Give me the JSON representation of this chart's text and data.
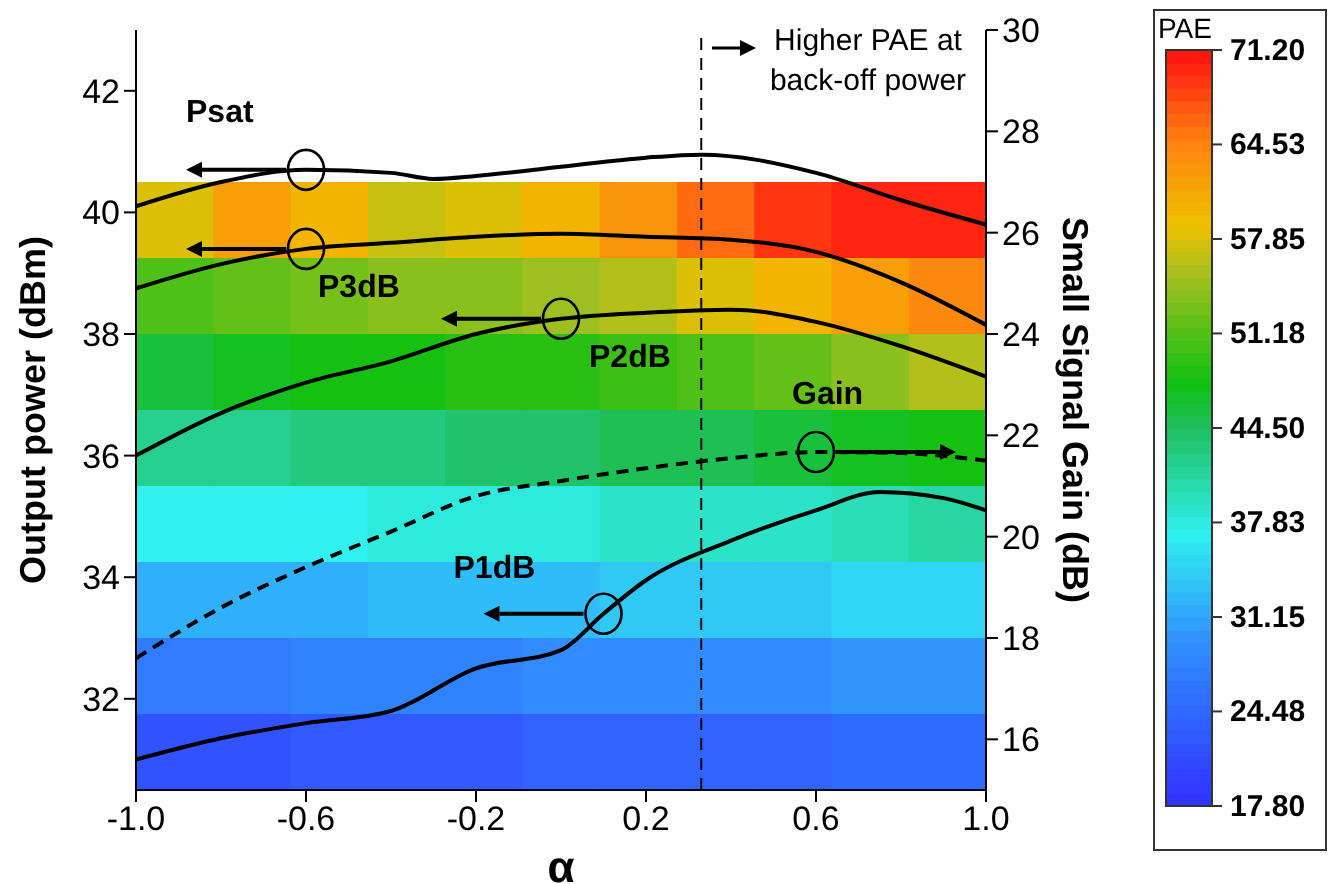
{
  "chart_data": [
    {
      "type": "heatmap",
      "clabel": "PAE",
      "tick_labels": false,
      "categories": [
        null,
        null,
        null,
        null,
        null,
        null,
        null,
        null,
        null,
        null,
        null
      ],
      "y_categories": [
        null,
        null,
        null,
        null,
        null,
        null,
        null,
        null
      ],
      "cells": [
        [
          58,
          62,
          60,
          57,
          58,
          60,
          63,
          66,
          69,
          70,
          70
        ],
        [
          51,
          52,
          53,
          54,
          54,
          55,
          56,
          58,
          60,
          62,
          64
        ],
        [
          46,
          47,
          48,
          48,
          49,
          49,
          50,
          51,
          52,
          54,
          56
        ],
        [
          42,
          42,
          43,
          43,
          44,
          44,
          45,
          45,
          46,
          47,
          48
        ],
        [
          37,
          37,
          37,
          38,
          38,
          38,
          39,
          39,
          39,
          40,
          41
        ],
        [
          32,
          32,
          32,
          33,
          33,
          33,
          34,
          34,
          34,
          35,
          35
        ],
        [
          27,
          27,
          28,
          28,
          28,
          29,
          29,
          29,
          29,
          30,
          30
        ],
        [
          22,
          22,
          23,
          23,
          23,
          24,
          24,
          24,
          24,
          25,
          25
        ]
      ],
      "clim": [
        17.8,
        71.2
      ],
      "cticks": [
        {
          "value": 17.8,
          "label": "17.80"
        },
        {
          "value": 24.48,
          "label": "24.48"
        },
        {
          "value": 31.15,
          "label": "31.15"
        },
        {
          "value": 37.83,
          "label": "37.83"
        },
        {
          "value": 44.5,
          "label": "44.50"
        },
        {
          "value": 51.18,
          "label": "51.18"
        },
        {
          "value": 57.85,
          "label": "57.85"
        },
        {
          "value": 64.53,
          "label": "64.53"
        },
        {
          "value": 71.2,
          "label": "71.20"
        }
      ]
    },
    {
      "type": "line",
      "xlabel": "α",
      "ylabel": "Output power (dBm)",
      "y2label": "Small Signal Gain (dB)",
      "xlim": [
        -1,
        1
      ],
      "xticks": [
        {
          "value": -1,
          "label": "-1.0"
        },
        -0.6,
        -0.2,
        0.2,
        0.6,
        {
          "value": 1,
          "label": "1.0"
        }
      ],
      "ylim": [
        30.5,
        43
      ],
      "yticks": [
        32,
        34,
        36,
        38,
        40,
        42
      ],
      "y2lim": [
        15,
        30
      ],
      "y2ticks": [
        16,
        18,
        20,
        22,
        24,
        26,
        28,
        30
      ],
      "grid": false,
      "marker": "none",
      "series": [
        {
          "name": "Psat",
          "color": "#000000",
          "x": [
            -1,
            -0.8,
            -0.6,
            -0.4,
            -0.3,
            -0.2,
            0,
            0.2,
            0.33,
            0.6,
            0.8,
            1
          ],
          "values": [
            40.1,
            40.5,
            40.7,
            40.65,
            40.55,
            40.6,
            40.75,
            40.9,
            40.95,
            40.65,
            40.2,
            39.8
          ]
        },
        {
          "name": "P3dB",
          "color": "#000000",
          "x": [
            -1,
            -0.8,
            -0.6,
            -0.4,
            -0.2,
            0,
            0.2,
            0.4,
            0.6,
            0.8,
            1
          ],
          "values": [
            38.75,
            39.15,
            39.4,
            39.5,
            39.6,
            39.65,
            39.6,
            39.55,
            39.35,
            38.85,
            38.15
          ]
        },
        {
          "name": "P2dB",
          "color": "#000000",
          "x": [
            -1,
            -0.8,
            -0.6,
            -0.4,
            -0.2,
            0,
            0.2,
            0.4,
            0.6,
            0.8,
            1
          ],
          "values": [
            36.0,
            36.7,
            37.2,
            37.55,
            38.0,
            38.25,
            38.35,
            38.4,
            38.2,
            37.8,
            37.3
          ]
        },
        {
          "name": "P1dB",
          "color": "#000000",
          "x": [
            -1,
            -0.8,
            -0.6,
            -0.4,
            -0.2,
            0,
            0.1,
            0.2,
            0.4,
            0.6,
            0.75,
            0.9,
            1
          ],
          "values": [
            31.0,
            31.35,
            31.6,
            31.8,
            32.5,
            32.8,
            33.4,
            33.95,
            34.6,
            35.1,
            35.4,
            35.3,
            35.1
          ]
        },
        {
          "name": "Gain",
          "color": "#000000",
          "axis": "y2",
          "line_style": "dashed",
          "x": [
            -1,
            -0.8,
            -0.6,
            -0.4,
            -0.2,
            0,
            0.2,
            0.4,
            0.6,
            0.8,
            1
          ],
          "values": [
            17.6,
            18.6,
            19.4,
            20.1,
            20.8,
            21.1,
            21.35,
            21.55,
            21.67,
            21.65,
            21.5
          ]
        }
      ],
      "ref_lines": [
        {
          "axis": "x",
          "value": 0.33,
          "color": "#000000",
          "line_style": "dashed"
        }
      ],
      "annotations": [
        "Higher PAE at back-off power"
      ]
    }
  ]
}
